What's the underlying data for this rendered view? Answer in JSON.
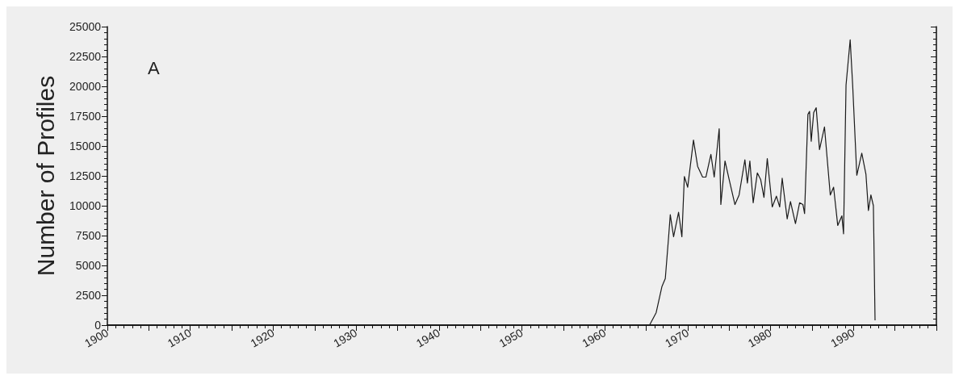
{
  "chart_data": {
    "type": "line",
    "ylabel": "Number of Profiles",
    "annotations": [
      "A"
    ],
    "x": [
      1900,
      1965.4,
      1966.2,
      1966.9,
      1967.3,
      1967.7,
      1967.9,
      1968.3,
      1968.9,
      1969.3,
      1969.6,
      1970.0,
      1970.7,
      1971.2,
      1971.8,
      1972.2,
      1972.8,
      1973.2,
      1973.8,
      1974.0,
      1974.5,
      1975.0,
      1975.7,
      1976.2,
      1976.9,
      1977.2,
      1977.5,
      1977.9,
      1978.4,
      1978.8,
      1979.2,
      1979.6,
      1980.2,
      1980.7,
      1981.1,
      1981.4,
      1982.0,
      1982.4,
      1983.0,
      1983.5,
      1983.9,
      1984.1,
      1984.5,
      1984.7,
      1984.9,
      1985.2,
      1985.5,
      1985.9,
      1986.5,
      1987.2,
      1987.6,
      1988.1,
      1988.6,
      1988.8,
      1989.1,
      1989.6,
      1989.9,
      1990.4,
      1991.0,
      1991.5,
      1991.8,
      1992.1,
      1992.4,
      1992.6
    ],
    "series": [
      {
        "color": "#1a1a1a",
        "values": [
          0,
          0,
          1050,
          3250,
          3900,
          7400,
          9250,
          7400,
          9450,
          7400,
          12450,
          11550,
          15500,
          13300,
          12400,
          12400,
          14300,
          12400,
          16450,
          10100,
          13750,
          12200,
          10100,
          10900,
          13850,
          11900,
          13750,
          10250,
          12750,
          12200,
          10700,
          13950,
          9900,
          10800,
          9900,
          12300,
          8900,
          10350,
          8500,
          10250,
          10100,
          9350,
          17650,
          17900,
          15400,
          17800,
          18200,
          14700,
          16600,
          10900,
          11550,
          8350,
          9150,
          7650,
          20100,
          23900,
          20100,
          12550,
          14400,
          12650,
          9600,
          10900,
          10000,
          400
        ]
      }
    ],
    "xlim": [
      1900,
      2000
    ],
    "xticks": [
      1900,
      1910,
      1920,
      1930,
      1940,
      1950,
      1960,
      1970,
      1980,
      1990
    ],
    "ylim": [
      0,
      25000
    ],
    "yticks": [
      0,
      2500,
      5000,
      7500,
      10000,
      12500,
      15000,
      17500,
      20000,
      22500,
      25000
    ],
    "grid": false,
    "marker": "none",
    "line_style": "solid"
  }
}
